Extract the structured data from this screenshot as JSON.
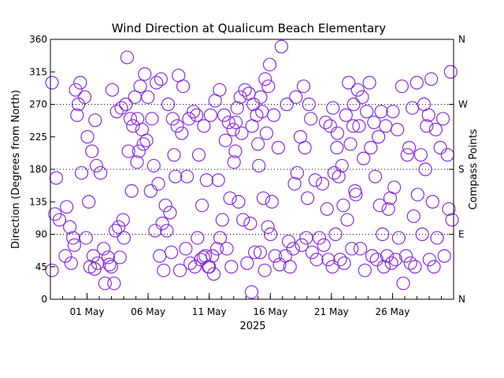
{
  "chart_data": {
    "type": "scatter",
    "title": "Wind Direction at Qualicum Beach Elementary",
    "xlabel": "2025",
    "ylabel": "Direction (Degrees from North)",
    "y2label": "Compass Points",
    "xlim": [
      "2025-04-28",
      "2025-05-31"
    ],
    "ylim": [
      0,
      360
    ],
    "x_ticks": [
      {
        "date": "2025-05-01",
        "label": "01 May"
      },
      {
        "date": "2025-05-06",
        "label": "06 May"
      },
      {
        "date": "2025-05-11",
        "label": "11 May"
      },
      {
        "date": "2025-05-16",
        "label": "16 May"
      },
      {
        "date": "2025-05-21",
        "label": "21 May"
      },
      {
        "date": "2025-05-26",
        "label": "26 May"
      }
    ],
    "y_ticks": [
      0,
      45,
      90,
      135,
      180,
      225,
      270,
      315,
      360
    ],
    "y2_ticks": [
      {
        "value": 0,
        "label": "N"
      },
      {
        "value": 90,
        "label": "E"
      },
      {
        "value": 180,
        "label": "S"
      },
      {
        "value": 270,
        "label": "W"
      },
      {
        "value": 360,
        "label": "N"
      }
    ],
    "grid_lines": [
      90,
      180,
      270
    ],
    "marker_color": "#8a2be2",
    "series": [
      {
        "points": [
          [
            "2025-04-28",
            40
          ],
          [
            "2025-04-28",
            118
          ],
          [
            "2025-04-28",
            110
          ],
          [
            "2025-04-28",
            300
          ],
          [
            "2025-04-28",
            168
          ],
          [
            "2025-04-29",
            85
          ],
          [
            "2025-04-29",
            60
          ],
          [
            "2025-04-29",
            100
          ],
          [
            "2025-04-29",
            75
          ],
          [
            "2025-04-29",
            128
          ],
          [
            "2025-04-29",
            50
          ],
          [
            "2025-04-30",
            290
          ],
          [
            "2025-04-30",
            300
          ],
          [
            "2025-04-30",
            280
          ],
          [
            "2025-04-30",
            255
          ],
          [
            "2025-04-30",
            175
          ],
          [
            "2025-04-30",
            85
          ],
          [
            "2025-04-30",
            270
          ],
          [
            "2025-05-01",
            248
          ],
          [
            "2025-05-01",
            225
          ],
          [
            "2025-05-01",
            205
          ],
          [
            "2025-05-01",
            185
          ],
          [
            "2025-05-01",
            135
          ],
          [
            "2025-05-01",
            60
          ],
          [
            "2025-05-01",
            50
          ],
          [
            "2025-05-01",
            45
          ],
          [
            "2025-05-01",
            42
          ],
          [
            "2025-05-02",
            45
          ],
          [
            "2025-05-02",
            70
          ],
          [
            "2025-05-02",
            58
          ],
          [
            "2025-05-02",
            175
          ],
          [
            "2025-05-02",
            22
          ],
          [
            "2025-05-02",
            48
          ],
          [
            "2025-05-03",
            22
          ],
          [
            "2025-05-03",
            100
          ],
          [
            "2025-05-03",
            110
          ],
          [
            "2025-05-03",
            95
          ],
          [
            "2025-05-03",
            58
          ],
          [
            "2025-05-03",
            290
          ],
          [
            "2025-05-03",
            260
          ],
          [
            "2025-05-03",
            265
          ],
          [
            "2025-05-04",
            270
          ],
          [
            "2025-05-04",
            250
          ],
          [
            "2025-05-04",
            280
          ],
          [
            "2025-05-04",
            335
          ],
          [
            "2025-05-04",
            150
          ],
          [
            "2025-05-04",
            85
          ],
          [
            "2025-05-04",
            205
          ],
          [
            "2025-05-04",
            240
          ],
          [
            "2025-05-05",
            250
          ],
          [
            "2025-05-05",
            235
          ],
          [
            "2025-05-05",
            220
          ],
          [
            "2025-05-05",
            205
          ],
          [
            "2025-05-05",
            215
          ],
          [
            "2025-05-05",
            280
          ],
          [
            "2025-05-05",
            295
          ],
          [
            "2025-05-05",
            312
          ],
          [
            "2025-05-05",
            190
          ],
          [
            "2025-05-06",
            185
          ],
          [
            "2025-05-06",
            160
          ],
          [
            "2025-05-06",
            150
          ],
          [
            "2025-05-06",
            95
          ],
          [
            "2025-05-06",
            60
          ],
          [
            "2025-05-06",
            250
          ],
          [
            "2025-05-06",
            300
          ],
          [
            "2025-05-07",
            305
          ],
          [
            "2025-05-07",
            130
          ],
          [
            "2025-05-07",
            120
          ],
          [
            "2025-05-07",
            105
          ],
          [
            "2025-05-07",
            95
          ],
          [
            "2025-05-07",
            65
          ],
          [
            "2025-05-07",
            40
          ],
          [
            "2025-05-07",
            270
          ],
          [
            "2025-05-08",
            250
          ],
          [
            "2025-05-08",
            240
          ],
          [
            "2025-05-08",
            230
          ],
          [
            "2025-05-08",
            200
          ],
          [
            "2025-05-08",
            310
          ],
          [
            "2025-05-08",
            295
          ],
          [
            "2025-05-08",
            170
          ],
          [
            "2025-05-08",
            40
          ],
          [
            "2025-05-09",
            255
          ],
          [
            "2025-05-09",
            250
          ],
          [
            "2025-05-09",
            260
          ],
          [
            "2025-05-09",
            70
          ],
          [
            "2025-05-09",
            50
          ],
          [
            "2025-05-09",
            45
          ],
          [
            "2025-05-09",
            170
          ],
          [
            "2025-05-10",
            240
          ],
          [
            "2025-05-10",
            45
          ],
          [
            "2025-05-10",
            55
          ],
          [
            "2025-05-10",
            60
          ],
          [
            "2025-05-10",
            85
          ],
          [
            "2025-05-10",
            130
          ],
          [
            "2025-05-10",
            165
          ],
          [
            "2025-05-10",
            200
          ],
          [
            "2025-05-10",
            58
          ],
          [
            "2025-05-11",
            85
          ],
          [
            "2025-05-11",
            60
          ],
          [
            "2025-05-11",
            70
          ],
          [
            "2025-05-11",
            45
          ],
          [
            "2025-05-11",
            35
          ],
          [
            "2025-05-11",
            165
          ],
          [
            "2025-05-11",
            255
          ],
          [
            "2025-05-11",
            275
          ],
          [
            "2025-05-11",
            290
          ],
          [
            "2025-05-12",
            255
          ],
          [
            "2025-05-12",
            245
          ],
          [
            "2025-05-12",
            235
          ],
          [
            "2025-05-12",
            220
          ],
          [
            "2025-05-12",
            140
          ],
          [
            "2025-05-12",
            110
          ],
          [
            "2025-05-12",
            70
          ],
          [
            "2025-05-12",
            45
          ],
          [
            "2025-05-13",
            245
          ],
          [
            "2025-05-13",
            280
          ],
          [
            "2025-05-13",
            290
          ],
          [
            "2025-05-13",
            265
          ],
          [
            "2025-05-13",
            230
          ],
          [
            "2025-05-13",
            190
          ],
          [
            "2025-05-13",
            135
          ],
          [
            "2025-05-13",
            110
          ],
          [
            "2025-05-13",
            205
          ],
          [
            "2025-05-14",
            240
          ],
          [
            "2025-05-14",
            255
          ],
          [
            "2025-05-14",
            285
          ],
          [
            "2025-05-14",
            270
          ],
          [
            "2025-05-14",
            215
          ],
          [
            "2025-05-14",
            105
          ],
          [
            "2025-05-14",
            65
          ],
          [
            "2025-05-14",
            50
          ],
          [
            "2025-05-14",
            10
          ],
          [
            "2025-05-15",
            295
          ],
          [
            "2025-05-15",
            280
          ],
          [
            "2025-05-15",
            305
          ],
          [
            "2025-05-15",
            325
          ],
          [
            "2025-05-15",
            260
          ],
          [
            "2025-05-15",
            230
          ],
          [
            "2025-05-15",
            185
          ],
          [
            "2025-05-15",
            140
          ],
          [
            "2025-05-15",
            100
          ],
          [
            "2025-05-15",
            65
          ],
          [
            "2025-05-15",
            40
          ],
          [
            "2025-05-16",
            350
          ],
          [
            "2025-05-16",
            255
          ],
          [
            "2025-05-16",
            210
          ],
          [
            "2025-05-16",
            90
          ],
          [
            "2025-05-16",
            60
          ],
          [
            "2025-05-16",
            48
          ],
          [
            "2025-05-16",
            135
          ],
          [
            "2025-05-17",
            80
          ],
          [
            "2025-05-17",
            70
          ],
          [
            "2025-05-17",
            60
          ],
          [
            "2025-05-17",
            45
          ],
          [
            "2025-05-17",
            160
          ],
          [
            "2025-05-17",
            270
          ],
          [
            "2025-05-18",
            295
          ],
          [
            "2025-05-18",
            280
          ],
          [
            "2025-05-18",
            225
          ],
          [
            "2025-05-18",
            210
          ],
          [
            "2025-05-18",
            175
          ],
          [
            "2025-05-18",
            75
          ],
          [
            "2025-05-18",
            85
          ],
          [
            "2025-05-19",
            250
          ],
          [
            "2025-05-19",
            165
          ],
          [
            "2025-05-19",
            140
          ],
          [
            "2025-05-19",
            65
          ],
          [
            "2025-05-19",
            55
          ],
          [
            "2025-05-19",
            270
          ],
          [
            "2025-05-20",
            245
          ],
          [
            "2025-05-20",
            240
          ],
          [
            "2025-05-20",
            160
          ],
          [
            "2025-05-20",
            125
          ],
          [
            "2025-05-20",
            85
          ],
          [
            "2025-05-20",
            75
          ],
          [
            "2025-05-20",
            55
          ],
          [
            "2025-05-21",
            265
          ],
          [
            "2025-05-21",
            230
          ],
          [
            "2025-05-21",
            185
          ],
          [
            "2025-05-21",
            175
          ],
          [
            "2025-05-21",
            170
          ],
          [
            "2025-05-21",
            130
          ],
          [
            "2025-05-21",
            90
          ],
          [
            "2025-05-21",
            55
          ],
          [
            "2025-05-21",
            45
          ],
          [
            "2025-05-21",
            210
          ],
          [
            "2025-05-22",
            270
          ],
          [
            "2025-05-22",
            255
          ],
          [
            "2025-05-22",
            215
          ],
          [
            "2025-05-22",
            150
          ],
          [
            "2025-05-22",
            110
          ],
          [
            "2025-05-22",
            70
          ],
          [
            "2025-05-22",
            50
          ],
          [
            "2025-05-22",
            300
          ],
          [
            "2025-05-22",
            240
          ],
          [
            "2025-05-23",
            290
          ],
          [
            "2025-05-23",
            280
          ],
          [
            "2025-05-23",
            260
          ],
          [
            "2025-05-23",
            240
          ],
          [
            "2025-05-23",
            195
          ],
          [
            "2025-05-23",
            145
          ],
          [
            "2025-05-23",
            70
          ],
          [
            "2025-05-23",
            40
          ],
          [
            "2025-05-24",
            300
          ],
          [
            "2025-05-24",
            245
          ],
          [
            "2025-05-24",
            225
          ],
          [
            "2025-05-24",
            210
          ],
          [
            "2025-05-24",
            170
          ],
          [
            "2025-05-24",
            130
          ],
          [
            "2025-05-24",
            60
          ],
          [
            "2025-05-24",
            55
          ],
          [
            "2025-05-25",
            260
          ],
          [
            "2025-05-25",
            240
          ],
          [
            "2025-05-25",
            140
          ],
          [
            "2025-05-25",
            90
          ],
          [
            "2025-05-25",
            60
          ],
          [
            "2025-05-25",
            50
          ],
          [
            "2025-05-25",
            45
          ],
          [
            "2025-05-25",
            125
          ],
          [
            "2025-05-26",
            260
          ],
          [
            "2025-05-26",
            235
          ],
          [
            "2025-05-26",
            295
          ],
          [
            "2025-05-26",
            155
          ],
          [
            "2025-05-26",
            85
          ],
          [
            "2025-05-26",
            22
          ],
          [
            "2025-05-26",
            55
          ],
          [
            "2025-05-27",
            265
          ],
          [
            "2025-05-27",
            300
          ],
          [
            "2025-05-27",
            210
          ],
          [
            "2025-05-27",
            115
          ],
          [
            "2025-05-27",
            60
          ],
          [
            "2025-05-27",
            50
          ],
          [
            "2025-05-27",
            45
          ],
          [
            "2025-05-27",
            200
          ],
          [
            "2025-05-28",
            270
          ],
          [
            "2025-05-28",
            255
          ],
          [
            "2025-05-28",
            200
          ],
          [
            "2025-05-28",
            180
          ],
          [
            "2025-05-28",
            145
          ],
          [
            "2025-05-28",
            90
          ],
          [
            "2025-05-28",
            240
          ],
          [
            "2025-05-29",
            305
          ],
          [
            "2025-05-29",
            235
          ],
          [
            "2025-05-29",
            210
          ],
          [
            "2025-05-29",
            135
          ],
          [
            "2025-05-29",
            85
          ],
          [
            "2025-05-29",
            55
          ],
          [
            "2025-05-29",
            45
          ],
          [
            "2025-05-30",
            315
          ],
          [
            "2025-05-30",
            250
          ],
          [
            "2025-05-30",
            200
          ],
          [
            "2025-05-30",
            110
          ],
          [
            "2025-05-30",
            60
          ],
          [
            "2025-05-30",
            125
          ]
        ]
      }
    ]
  }
}
